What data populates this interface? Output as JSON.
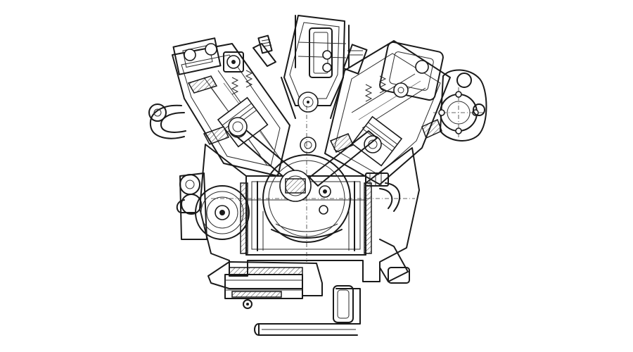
{
  "figure": {
    "subject": "",
    "style": "",
    "colors": {
      "ink": "#1a1a1a",
      "paper": "#ffffff"
    }
  }
}
